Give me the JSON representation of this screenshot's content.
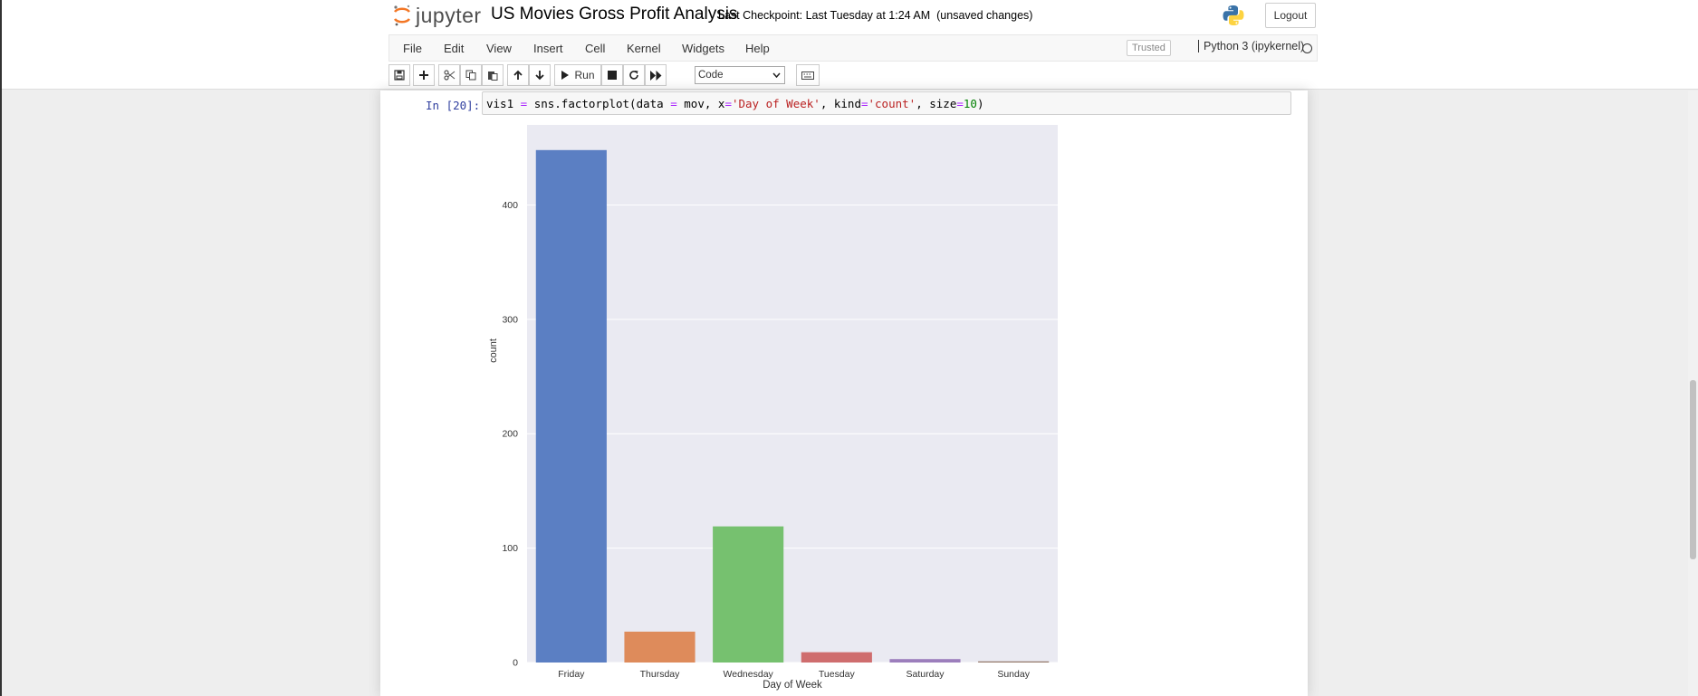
{
  "app": {
    "logo_text": "jupyter",
    "notebook_title": "US Movies Gross Profit Analysis",
    "checkpoint": "Last Checkpoint: Last Tuesday at 1:24 AM",
    "unsaved": "(unsaved changes)",
    "logout_label": "Logout"
  },
  "menu": {
    "items": [
      "File",
      "Edit",
      "View",
      "Insert",
      "Cell",
      "Kernel",
      "Widgets",
      "Help"
    ],
    "trusted": "Trusted",
    "kernel": "Python 3 (ipykernel)"
  },
  "toolbar": {
    "run_label": "Run",
    "cell_type": "Code"
  },
  "cell": {
    "prompt": "In [20]:",
    "code_parts": {
      "a": "vis1 ",
      "op1": "=",
      "b": " sns.factorplot(data ",
      "op2": "=",
      "c": " mov, x",
      "op3": "=",
      "s1": "'Day of Week'",
      "d": ", kind",
      "op4": "=",
      "s2": "'count'",
      "e": ", size",
      "op5": "=",
      "n1": "10",
      "f": ")"
    }
  },
  "chart_data": {
    "type": "bar",
    "categories": [
      "Friday",
      "Thursday",
      "Wednesday",
      "Tuesday",
      "Saturday",
      "Sunday"
    ],
    "values": [
      448,
      27,
      119,
      9,
      3,
      1
    ],
    "colors": [
      "#5b7fc3",
      "#de8b5b",
      "#76c16f",
      "#cf6d6e",
      "#9c7ebc",
      "#94786a"
    ],
    "xlabel": "Day of Week",
    "ylabel": "count",
    "ylim": [
      0,
      470
    ],
    "yticks": [
      0,
      100,
      200,
      300,
      400
    ],
    "grid": true,
    "background": "#eaeaf2"
  }
}
